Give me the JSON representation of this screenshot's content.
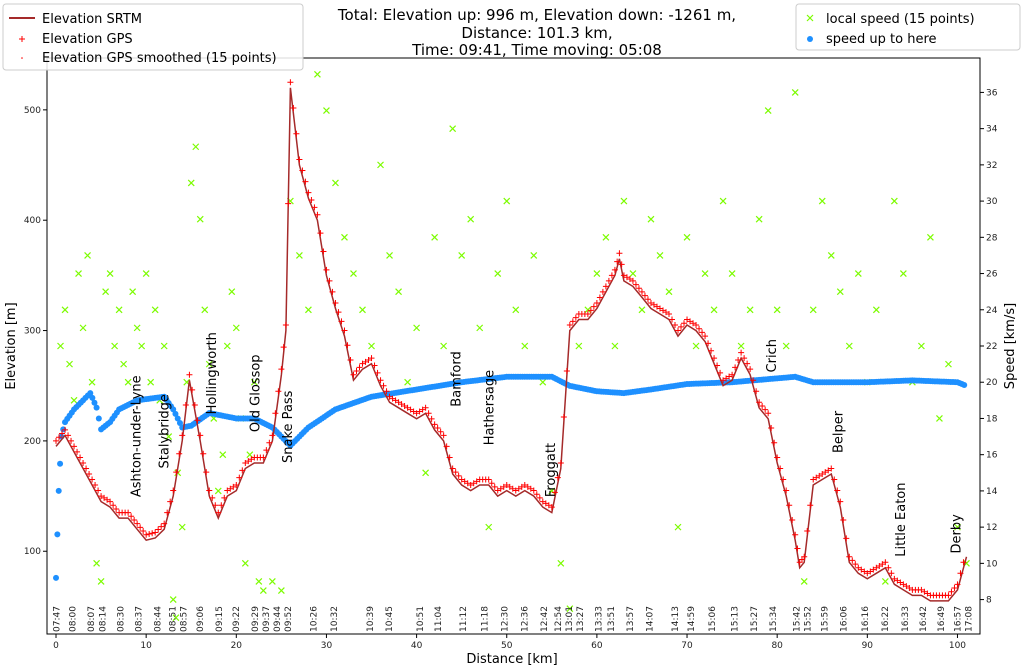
{
  "chart_data": {
    "type": "line",
    "title": [
      "Total: Elevation up: 996 m, Elevation down: -1261 m,",
      "Distance: 101.3 km,",
      "Time: 09:41, Time moving: 05:08"
    ],
    "xlabel": "Distance [km]",
    "ylabel": "Elevation [m]",
    "y2label": "Speed [km/s]",
    "xlim": [
      -1,
      102.5
    ],
    "ylim": [
      25,
      547
    ],
    "y2lim": [
      6.1,
      37.9
    ],
    "xticks": [
      0,
      10,
      20,
      30,
      40,
      50,
      60,
      70,
      80,
      90,
      100
    ],
    "yticks": [
      100,
      200,
      300,
      400,
      500
    ],
    "y2ticks": [
      8,
      10,
      12,
      14,
      16,
      18,
      20,
      22,
      24,
      26,
      28,
      30,
      32,
      34,
      36
    ],
    "grid": false,
    "colors": {
      "srtm": "#a52a2a",
      "gps": "#ff0000",
      "local_speed": "#7cfc00",
      "avg_speed": "#1e90ff"
    },
    "legend_left": {
      "placement": "top-left",
      "entries": [
        "Elevation SRTM",
        "Elevation GPS",
        "Elevation GPS smoothed (15 points)"
      ]
    },
    "legend_right": {
      "placement": "top-right",
      "entries": [
        "local speed (15 points)",
        "speed up to here"
      ]
    },
    "time_labels": [
      {
        "km": 0.0,
        "t": "07:47"
      },
      {
        "km": 1.8,
        "t": "08:00"
      },
      {
        "km": 3.8,
        "t": "08:07"
      },
      {
        "km": 5.1,
        "t": "08:14"
      },
      {
        "km": 7.1,
        "t": "08:30"
      },
      {
        "km": 9.1,
        "t": "08:37"
      },
      {
        "km": 11.2,
        "t": "08:44"
      },
      {
        "km": 13.0,
        "t": "08:51"
      },
      {
        "km": 14.0,
        "t": "08:57"
      },
      {
        "km": 15.9,
        "t": "09:06"
      },
      {
        "km": 18.0,
        "t": "09:15"
      },
      {
        "km": 19.9,
        "t": "09:22"
      },
      {
        "km": 22.1,
        "t": "09:29"
      },
      {
        "km": 23.4,
        "t": "09:37"
      },
      {
        "km": 24.4,
        "t": "09:44"
      },
      {
        "km": 25.4,
        "t": "09:52"
      },
      {
        "km": 28.5,
        "t": "10:26"
      },
      {
        "km": 30.8,
        "t": "10:32"
      },
      {
        "km": 34.8,
        "t": "10:39"
      },
      {
        "km": 36.9,
        "t": "10:45"
      },
      {
        "km": 40.3,
        "t": "10:51"
      },
      {
        "km": 42.3,
        "t": "11:04"
      },
      {
        "km": 45.1,
        "t": "11:12"
      },
      {
        "km": 47.5,
        "t": "11:18"
      },
      {
        "km": 49.7,
        "t": "12:30"
      },
      {
        "km": 51.9,
        "t": "12:36"
      },
      {
        "km": 54.1,
        "t": "12:42"
      },
      {
        "km": 55.8,
        "t": "12:54"
      },
      {
        "km": 56.8,
        "t": "13:01"
      },
      {
        "km": 58.0,
        "t": "13:27"
      },
      {
        "km": 60.1,
        "t": "13:33"
      },
      {
        "km": 61.5,
        "t": "13:51"
      },
      {
        "km": 63.6,
        "t": "13:57"
      },
      {
        "km": 65.8,
        "t": "14:07"
      },
      {
        "km": 68.6,
        "t": "14:13"
      },
      {
        "km": 70.4,
        "t": "14:59"
      },
      {
        "km": 72.7,
        "t": "15:06"
      },
      {
        "km": 75.2,
        "t": "15:13"
      },
      {
        "km": 77.4,
        "t": "15:27"
      },
      {
        "km": 79.5,
        "t": "15:34"
      },
      {
        "km": 82.3,
        "t": "15:42"
      },
      {
        "km": 83.1,
        "t": "15:52"
      },
      {
        "km": 85.2,
        "t": "15:59"
      },
      {
        "km": 87.3,
        "t": "16:06"
      },
      {
        "km": 89.7,
        "t": "16:16"
      },
      {
        "km": 91.9,
        "t": "16:22"
      },
      {
        "km": 94.1,
        "t": "16:33"
      },
      {
        "km": 96.1,
        "t": "16:42"
      },
      {
        "km": 98.1,
        "t": "16:49"
      },
      {
        "km": 100.0,
        "t": "16:57"
      },
      {
        "km": 101.1,
        "t": "17:08"
      }
    ],
    "places": [
      {
        "name": "Ashton-under-Lyne",
        "km": 8.8,
        "elev": 149
      },
      {
        "name": "Stalybridge",
        "km": 11.9,
        "elev": 175
      },
      {
        "name": "Hollingworth",
        "km": 17.2,
        "elev": 224
      },
      {
        "name": "Old Glossop",
        "km": 22.0,
        "elev": 208
      },
      {
        "name": "Snake Pass",
        "km": 25.6,
        "elev": 180
      },
      {
        "name": "Bamford",
        "km": 44.3,
        "elev": 231
      },
      {
        "name": "Hathersage",
        "km": 48.0,
        "elev": 196
      },
      {
        "name": "Froggatt",
        "km": 54.8,
        "elev": 149
      },
      {
        "name": "Crich",
        "km": 79.3,
        "elev": 262
      },
      {
        "name": "Belper",
        "km": 86.7,
        "elev": 189
      },
      {
        "name": "Little Eaton",
        "km": 93.6,
        "elev": 95
      },
      {
        "name": "Derby",
        "km": 99.8,
        "elev": 98
      }
    ],
    "elevation_srtm": [
      [
        0,
        195
      ],
      [
        1,
        205
      ],
      [
        2,
        190
      ],
      [
        3,
        175
      ],
      [
        4,
        160
      ],
      [
        5,
        145
      ],
      [
        6,
        140
      ],
      [
        7,
        130
      ],
      [
        8,
        130
      ],
      [
        9,
        120
      ],
      [
        10,
        110
      ],
      [
        11,
        112
      ],
      [
        12,
        120
      ],
      [
        13,
        150
      ],
      [
        14,
        200
      ],
      [
        14.8,
        255
      ],
      [
        16,
        200
      ],
      [
        17,
        150
      ],
      [
        18,
        130
      ],
      [
        19,
        150
      ],
      [
        20,
        155
      ],
      [
        21,
        175
      ],
      [
        22,
        180
      ],
      [
        23,
        180
      ],
      [
        24,
        200
      ],
      [
        25,
        260
      ],
      [
        25.5,
        300
      ],
      [
        26,
        520
      ],
      [
        27,
        450
      ],
      [
        28,
        420
      ],
      [
        29,
        400
      ],
      [
        30,
        350
      ],
      [
        31,
        320
      ],
      [
        32,
        295
      ],
      [
        33,
        255
      ],
      [
        34,
        265
      ],
      [
        35,
        270
      ],
      [
        36,
        250
      ],
      [
        37,
        235
      ],
      [
        38,
        230
      ],
      [
        39,
        225
      ],
      [
        40,
        220
      ],
      [
        41,
        225
      ],
      [
        42,
        210
      ],
      [
        43,
        200
      ],
      [
        44,
        170
      ],
      [
        45,
        160
      ],
      [
        46,
        155
      ],
      [
        47,
        160
      ],
      [
        48,
        160
      ],
      [
        49,
        150
      ],
      [
        50,
        155
      ],
      [
        51,
        150
      ],
      [
        52,
        155
      ],
      [
        53,
        150
      ],
      [
        54,
        140
      ],
      [
        55,
        135
      ],
      [
        56,
        175
      ],
      [
        57,
        300
      ],
      [
        58,
        310
      ],
      [
        59,
        310
      ],
      [
        60,
        320
      ],
      [
        61,
        335
      ],
      [
        62,
        350
      ],
      [
        62.5,
        365
      ],
      [
        63,
        345
      ],
      [
        64,
        340
      ],
      [
        65,
        330
      ],
      [
        66,
        320
      ],
      [
        67,
        315
      ],
      [
        68,
        310
      ],
      [
        69,
        295
      ],
      [
        70,
        305
      ],
      [
        71,
        300
      ],
      [
        72,
        290
      ],
      [
        73,
        270
      ],
      [
        74,
        250
      ],
      [
        75,
        255
      ],
      [
        76,
        275
      ],
      [
        77,
        260
      ],
      [
        78,
        230
      ],
      [
        79,
        220
      ],
      [
        80,
        180
      ],
      [
        81,
        150
      ],
      [
        82,
        110
      ],
      [
        82.5,
        85
      ],
      [
        83,
        90
      ],
      [
        84,
        160
      ],
      [
        85,
        165
      ],
      [
        86,
        170
      ],
      [
        87,
        140
      ],
      [
        88,
        90
      ],
      [
        89,
        80
      ],
      [
        90,
        75
      ],
      [
        91,
        80
      ],
      [
        92,
        85
      ],
      [
        93,
        70
      ],
      [
        94,
        65
      ],
      [
        95,
        60
      ],
      [
        96,
        60
      ],
      [
        97,
        55
      ],
      [
        98,
        55
      ],
      [
        99,
        55
      ],
      [
        100,
        65
      ],
      [
        101,
        95
      ]
    ],
    "speed_up_to_here": [
      [
        0,
        9.2
      ],
      [
        0.3,
        14
      ],
      [
        0.6,
        17
      ],
      [
        1,
        17.8
      ],
      [
        2,
        18.5
      ],
      [
        3,
        19
      ],
      [
        3.8,
        19.4
      ],
      [
        4.5,
        18.6
      ],
      [
        5,
        17.4
      ],
      [
        6,
        17.8
      ],
      [
        7,
        18.5
      ],
      [
        9,
        19
      ],
      [
        12,
        19.2
      ],
      [
        13,
        18.5
      ],
      [
        14,
        17.5
      ],
      [
        15,
        17.6
      ],
      [
        17,
        18.3
      ],
      [
        20,
        18
      ],
      [
        22,
        18
      ],
      [
        24,
        17.5
      ],
      [
        26,
        16.5
      ],
      [
        28,
        17.5
      ],
      [
        31,
        18.5
      ],
      [
        35,
        19.2
      ],
      [
        40,
        19.6
      ],
      [
        45,
        20
      ],
      [
        50,
        20.3
      ],
      [
        55,
        20.3
      ],
      [
        57,
        19.8
      ],
      [
        60,
        19.5
      ],
      [
        63,
        19.4
      ],
      [
        66,
        19.6
      ],
      [
        70,
        19.9
      ],
      [
        75,
        20
      ],
      [
        82,
        20.3
      ],
      [
        84,
        20
      ],
      [
        90,
        20
      ],
      [
        95,
        20.1
      ],
      [
        100,
        20
      ],
      [
        101,
        19.8
      ]
    ],
    "local_speed": [
      [
        0.5,
        22
      ],
      [
        1,
        24
      ],
      [
        1.5,
        21
      ],
      [
        2,
        19
      ],
      [
        2.5,
        26
      ],
      [
        3,
        23
      ],
      [
        3.5,
        27
      ],
      [
        4,
        20
      ],
      [
        4.5,
        10
      ],
      [
        5,
        9
      ],
      [
        5.5,
        25
      ],
      [
        6,
        26
      ],
      [
        6.5,
        22
      ],
      [
        7,
        24
      ],
      [
        7.5,
        21
      ],
      [
        8,
        20
      ],
      [
        8.5,
        25
      ],
      [
        9,
        23
      ],
      [
        9.5,
        22
      ],
      [
        10,
        26
      ],
      [
        10.5,
        20
      ],
      [
        11,
        24
      ],
      [
        11.5,
        19
      ],
      [
        12,
        22
      ],
      [
        12.5,
        17
      ],
      [
        13,
        8
      ],
      [
        13.3,
        7
      ],
      [
        13.5,
        15
      ],
      [
        14,
        12
      ],
      [
        14.5,
        20
      ],
      [
        15,
        31
      ],
      [
        15.5,
        33
      ],
      [
        16,
        29
      ],
      [
        16.5,
        24
      ],
      [
        17,
        21
      ],
      [
        17.5,
        18
      ],
      [
        18,
        14
      ],
      [
        18.5,
        16
      ],
      [
        19,
        22
      ],
      [
        19.5,
        25
      ],
      [
        20,
        23
      ],
      [
        20.5,
        18
      ],
      [
        21,
        10
      ],
      [
        21.5,
        16
      ],
      [
        22,
        20
      ],
      [
        22.5,
        9
      ],
      [
        23,
        8.5
      ],
      [
        24,
        9
      ],
      [
        25,
        8.5
      ],
      [
        26,
        30
      ],
      [
        27,
        27
      ],
      [
        28,
        24
      ],
      [
        29,
        37
      ],
      [
        30,
        35
      ],
      [
        31,
        31
      ],
      [
        32,
        28
      ],
      [
        33,
        26
      ],
      [
        34,
        24
      ],
      [
        35,
        22
      ],
      [
        36,
        32
      ],
      [
        37,
        27
      ],
      [
        38,
        25
      ],
      [
        39,
        20
      ],
      [
        40,
        23
      ],
      [
        41,
        15
      ],
      [
        42,
        28
      ],
      [
        43,
        22
      ],
      [
        44,
        34
      ],
      [
        45,
        27
      ],
      [
        46,
        29
      ],
      [
        47,
        23
      ],
      [
        48,
        12
      ],
      [
        49,
        26
      ],
      [
        50,
        30
      ],
      [
        51,
        24
      ],
      [
        52,
        22
      ],
      [
        53,
        27
      ],
      [
        54,
        20
      ],
      [
        55,
        14
      ],
      [
        56,
        10
      ],
      [
        57,
        7.5
      ],
      [
        58,
        22
      ],
      [
        59,
        24
      ],
      [
        60,
        26
      ],
      [
        61,
        28
      ],
      [
        62,
        22
      ],
      [
        63,
        30
      ],
      [
        64,
        26
      ],
      [
        65,
        24
      ],
      [
        66,
        29
      ],
      [
        67,
        27
      ],
      [
        68,
        25
      ],
      [
        69,
        12
      ],
      [
        70,
        28
      ],
      [
        71,
        22
      ],
      [
        72,
        26
      ],
      [
        73,
        24
      ],
      [
        74,
        30
      ],
      [
        75,
        26
      ],
      [
        76,
        22
      ],
      [
        77,
        24
      ],
      [
        78,
        29
      ],
      [
        79,
        35
      ],
      [
        80,
        24
      ],
      [
        81,
        22
      ],
      [
        82,
        36
      ],
      [
        83,
        9
      ],
      [
        84,
        24
      ],
      [
        85,
        30
      ],
      [
        86,
        27
      ],
      [
        87,
        25
      ],
      [
        88,
        22
      ],
      [
        89,
        26
      ],
      [
        90,
        20
      ],
      [
        91,
        24
      ],
      [
        92,
        9
      ],
      [
        93,
        30
      ],
      [
        94,
        26
      ],
      [
        95,
        20
      ],
      [
        96,
        22
      ],
      [
        97,
        28
      ],
      [
        98,
        18
      ],
      [
        99,
        21
      ],
      [
        100,
        12
      ],
      [
        101,
        10
      ]
    ]
  }
}
